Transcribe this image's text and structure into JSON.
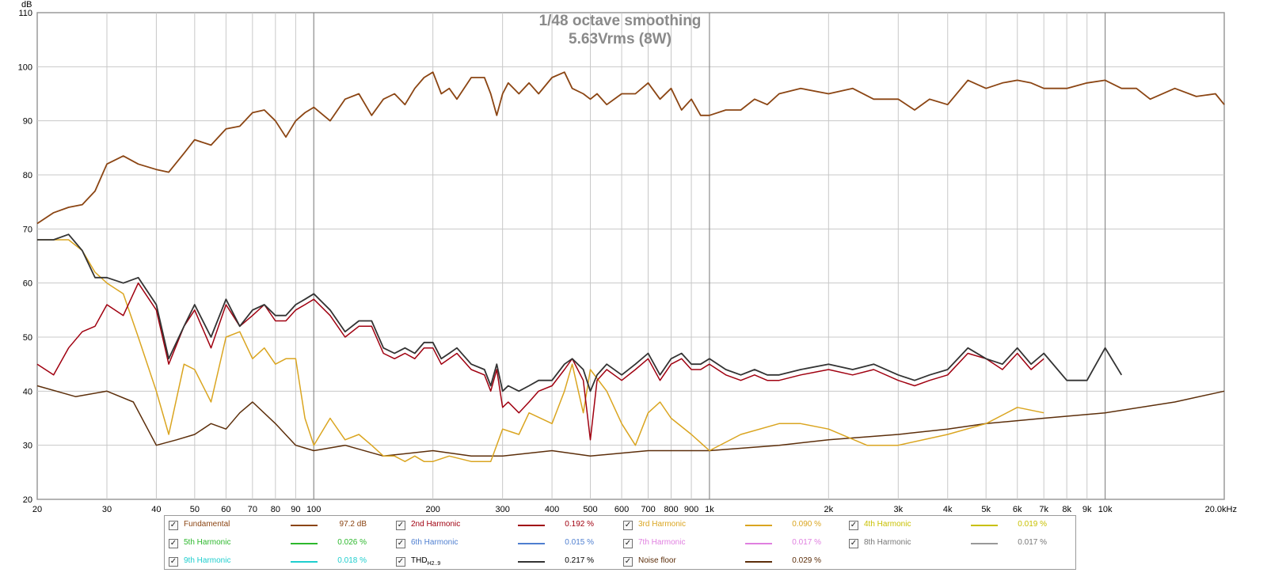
{
  "chart_data": {
    "type": "line",
    "title": "1/48 octave smoothing",
    "subtitle": "5.63Vrms (8W)",
    "ylabel": "dB",
    "xlabel": "",
    "xscale": "log",
    "xlim": [
      20,
      20000
    ],
    "ylim": [
      20,
      110
    ],
    "grid": true,
    "legend_position": "bottom",
    "y_ticks": [
      20,
      30,
      40,
      50,
      60,
      70,
      80,
      90,
      100,
      110
    ],
    "x_ticks": [
      {
        "value": 20,
        "label": "20"
      },
      {
        "value": 30,
        "label": "30"
      },
      {
        "value": 40,
        "label": "40"
      },
      {
        "value": 50,
        "label": "50"
      },
      {
        "value": 60,
        "label": "60"
      },
      {
        "value": 70,
        "label": "70"
      },
      {
        "value": 80,
        "label": "80"
      },
      {
        "value": 90,
        "label": "90"
      },
      {
        "value": 100,
        "label": "100"
      },
      {
        "value": 200,
        "label": "200"
      },
      {
        "value": 300,
        "label": "300"
      },
      {
        "value": 400,
        "label": "400"
      },
      {
        "value": 500,
        "label": "500"
      },
      {
        "value": 600,
        "label": "600"
      },
      {
        "value": 700,
        "label": "700"
      },
      {
        "value": 800,
        "label": "800"
      },
      {
        "value": 900,
        "label": "900"
      },
      {
        "value": 1000,
        "label": "1k"
      },
      {
        "value": 2000,
        "label": "2k"
      },
      {
        "value": 3000,
        "label": "3k"
      },
      {
        "value": 4000,
        "label": "4k"
      },
      {
        "value": 5000,
        "label": "5k"
      },
      {
        "value": 6000,
        "label": "6k"
      },
      {
        "value": 7000,
        "label": "7k"
      },
      {
        "value": 8000,
        "label": "8k"
      },
      {
        "value": 9000,
        "label": "9k"
      },
      {
        "value": 10000,
        "label": "10k"
      },
      {
        "value": 20000,
        "label": "20.0kHz"
      }
    ],
    "series": [
      {
        "name": "Fundamental",
        "color": "#8B4513",
        "value_label": "97.2 dB",
        "label_color": "#8B4513",
        "x": [
          20,
          22,
          24,
          26,
          28,
          30,
          33,
          36,
          40,
          43,
          47,
          50,
          55,
          60,
          65,
          70,
          75,
          80,
          85,
          90,
          95,
          100,
          110,
          120,
          130,
          140,
          150,
          160,
          170,
          180,
          190,
          200,
          210,
          220,
          230,
          250,
          270,
          280,
          290,
          300,
          310,
          330,
          350,
          370,
          400,
          430,
          450,
          480,
          500,
          520,
          550,
          600,
          650,
          700,
          750,
          800,
          850,
          900,
          950,
          1000,
          1100,
          1200,
          1300,
          1400,
          1500,
          1700,
          2000,
          2300,
          2600,
          3000,
          3300,
          3600,
          4000,
          4500,
          5000,
          5500,
          6000,
          6500,
          7000,
          8000,
          9000,
          10000,
          11000,
          12000,
          13000,
          15000,
          17000,
          19000,
          20000
        ],
        "y": [
          71,
          73,
          74,
          74.5,
          77,
          82,
          83.5,
          82,
          81,
          80.5,
          84,
          86.5,
          85.5,
          88.5,
          89,
          91.5,
          92,
          90,
          87,
          90,
          91.5,
          92.5,
          90,
          94,
          95,
          91,
          94,
          95,
          93,
          96,
          98,
          99,
          95,
          96,
          94,
          98,
          98,
          95,
          91,
          95,
          97,
          95,
          97,
          95,
          98,
          99,
          96,
          95,
          94,
          95,
          93,
          95,
          95,
          97,
          94,
          96,
          92,
          94,
          91,
          91,
          92,
          92,
          94,
          93,
          95,
          96,
          95,
          96,
          94,
          94,
          92,
          94,
          93,
          97.5,
          96,
          97,
          97.5,
          97,
          96,
          96,
          97,
          97.5,
          96,
          96,
          94,
          96,
          94.5,
          95,
          93
        ]
      },
      {
        "name": "2nd Harmonic",
        "color": "#A00010",
        "value_label": "0.192 %",
        "label_color": "#A00010",
        "x": [
          20,
          22,
          24,
          26,
          28,
          30,
          33,
          36,
          40,
          43,
          47,
          50,
          55,
          60,
          65,
          70,
          75,
          80,
          85,
          90,
          95,
          100,
          110,
          120,
          130,
          140,
          150,
          160,
          170,
          180,
          190,
          200,
          210,
          220,
          230,
          250,
          270,
          280,
          290,
          300,
          310,
          330,
          350,
          370,
          400,
          430,
          450,
          480,
          500,
          520,
          550,
          600,
          650,
          700,
          750,
          800,
          850,
          900,
          950,
          1000,
          1100,
          1200,
          1300,
          1400,
          1500,
          1700,
          2000,
          2300,
          2600,
          3000,
          3300,
          3600,
          4000,
          4500,
          5000,
          5500,
          6000,
          6500,
          7000
        ],
        "y": [
          45,
          43,
          48,
          51,
          52,
          56,
          54,
          60,
          55,
          45,
          52,
          55,
          48,
          56,
          52,
          54,
          56,
          53,
          53,
          55,
          56,
          57,
          54,
          50,
          52,
          52,
          47,
          46,
          47,
          46,
          48,
          48,
          45,
          46,
          47,
          44,
          43,
          40,
          44,
          37,
          38,
          36,
          38,
          40,
          41,
          44,
          46,
          42,
          31,
          42,
          44,
          42,
          44,
          46,
          42,
          45,
          46,
          44,
          44,
          45,
          43,
          42,
          43,
          42,
          42,
          43,
          44,
          43,
          44,
          42,
          41,
          42,
          43,
          47,
          46,
          44,
          47,
          44,
          46
        ]
      },
      {
        "name": "3rd Harmonic",
        "color": "#DAA520",
        "value_label": "0.090 %",
        "label_color": "#DAA520",
        "x": [
          20,
          22,
          24,
          26,
          28,
          30,
          33,
          36,
          40,
          43,
          47,
          50,
          55,
          60,
          65,
          70,
          75,
          80,
          85,
          90,
          95,
          100,
          110,
          120,
          130,
          140,
          150,
          160,
          170,
          180,
          190,
          200,
          220,
          250,
          280,
          300,
          330,
          350,
          400,
          430,
          450,
          480,
          500,
          550,
          600,
          650,
          700,
          750,
          800,
          900,
          1000,
          1200,
          1500,
          1700,
          2000,
          2500,
          3000,
          4000,
          5000,
          6000,
          7000
        ],
        "y": [
          68,
          68,
          68,
          66,
          62,
          60,
          58,
          50,
          40,
          32,
          45,
          44,
          38,
          50,
          51,
          46,
          48,
          45,
          46,
          46,
          35,
          30,
          35,
          31,
          32,
          30,
          28,
          28,
          27,
          28,
          27,
          27,
          28,
          27,
          27,
          33,
          32,
          36,
          34,
          40,
          45,
          36,
          44,
          40,
          34,
          30,
          36,
          38,
          35,
          32,
          29,
          32,
          34,
          34,
          33,
          30,
          30,
          32,
          34,
          37,
          36
        ]
      },
      {
        "name": "THDH2..9",
        "color": "#333333",
        "value_label": "0.217 %",
        "label_color": "#000000",
        "x": [
          20,
          22,
          24,
          26,
          28,
          30,
          33,
          36,
          40,
          43,
          47,
          50,
          55,
          60,
          65,
          70,
          75,
          80,
          85,
          90,
          95,
          100,
          110,
          120,
          130,
          140,
          150,
          160,
          170,
          180,
          190,
          200,
          210,
          220,
          230,
          250,
          270,
          280,
          290,
          300,
          310,
          330,
          350,
          370,
          400,
          430,
          450,
          480,
          500,
          520,
          550,
          600,
          650,
          700,
          750,
          800,
          850,
          900,
          950,
          1000,
          1100,
          1200,
          1300,
          1400,
          1500,
          1700,
          2000,
          2300,
          2600,
          3000,
          3300,
          3600,
          4000,
          4500,
          5000,
          5500,
          6000,
          6500,
          7000,
          8000,
          9000,
          10000,
          11000
        ],
        "y": [
          68,
          68,
          69,
          66,
          61,
          61,
          60,
          61,
          56,
          46,
          52,
          56,
          50,
          57,
          52,
          55,
          56,
          54,
          54,
          56,
          57,
          58,
          55,
          51,
          53,
          53,
          48,
          47,
          48,
          47,
          49,
          49,
          46,
          47,
          48,
          45,
          44,
          41,
          45,
          40,
          41,
          40,
          41,
          42,
          42,
          45,
          46,
          44,
          40,
          43,
          45,
          43,
          45,
          47,
          43,
          46,
          47,
          45,
          45,
          46,
          44,
          43,
          44,
          43,
          43,
          44,
          45,
          44,
          45,
          43,
          42,
          43,
          44,
          48,
          46,
          45,
          48,
          45,
          47,
          42,
          42,
          48,
          43
        ]
      },
      {
        "name": "Noise floor",
        "color": "#5C2E0A",
        "value_label": "0.029 %",
        "label_color": "#5C2E0A",
        "x": [
          20,
          25,
          30,
          35,
          40,
          45,
          50,
          55,
          60,
          65,
          70,
          80,
          90,
          100,
          120,
          150,
          200,
          250,
          300,
          400,
          500,
          700,
          1000,
          1500,
          2000,
          3000,
          4000,
          5000,
          7000,
          10000,
          15000,
          20000
        ],
        "y": [
          41,
          39,
          40,
          38,
          30,
          31,
          32,
          34,
          33,
          36,
          38,
          34,
          30,
          29,
          30,
          28,
          29,
          28,
          28,
          29,
          28,
          29,
          29,
          30,
          31,
          32,
          33,
          34,
          35,
          36,
          38,
          40
        ]
      }
    ]
  },
  "legend": [
    {
      "name": "Fundamental",
      "color": "#8B4513",
      "value": "97.2 dB",
      "label_color": "#8B4513",
      "checked": "✓"
    },
    {
      "name": "2nd Harmonic",
      "color": "#A00010",
      "value": "0.192 %",
      "label_color": "#A00010",
      "checked": "✓"
    },
    {
      "name": "3rd Harmonic",
      "color": "#DAA520",
      "value": "0.090 %",
      "label_color": "#DAA520",
      "checked": "✓"
    },
    {
      "name": "4th Harmonic",
      "color": "#C8C000",
      "value": "0.019 %",
      "label_color": "#C8C000",
      "checked": "✓"
    },
    {
      "name": "5th Harmonic",
      "color": "#2DB82D",
      "value": "0.026 %",
      "label_color": "#2DB82D",
      "checked": "✓"
    },
    {
      "name": "6th Harmonic",
      "color": "#4F7FD0",
      "value": "0.015 %",
      "label_color": "#4F7FD0",
      "checked": "✓"
    },
    {
      "name": "7th Harmonic",
      "color": "#E080E0",
      "value": "0.017 %",
      "label_color": "#E080E0",
      "checked": "✓"
    },
    {
      "name": "8th Harmonic",
      "color": "#999999",
      "value": "0.017 %",
      "label_color": "#777777",
      "checked": "✓"
    },
    {
      "name": "9th Harmonic",
      "color": "#1ECECE",
      "value": "0.018 %",
      "label_color": "#1ECECE",
      "checked": "✓"
    },
    {
      "name": "THD",
      "sub": "H2..9",
      "color": "#333333",
      "value": "0.217 %",
      "label_color": "#000000",
      "checked": "✓"
    },
    {
      "name": "Noise floor",
      "color": "#5C2E0A",
      "value": "0.029 %",
      "label_color": "#5C2E0A",
      "checked": "✓"
    }
  ],
  "colors": {
    "grid": "#c8c8c8",
    "grid_major": "#8c8c8c",
    "frame": "#9a9a9a",
    "background": "#ffffff"
  }
}
